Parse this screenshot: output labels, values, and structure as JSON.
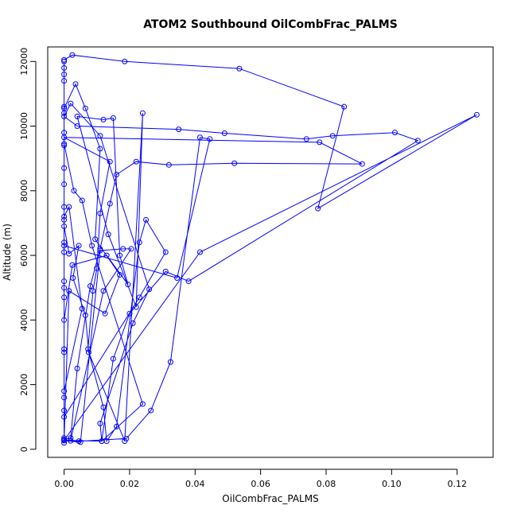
{
  "chart_data": {
    "type": "scatter",
    "title": "ATOM2 Southbound OilCombFrac_PALMS",
    "xlabel": "OilCombFrac_PALMS",
    "ylabel": "Altitude (m)",
    "xlim": [
      -0.005,
      0.131
    ],
    "ylim": [
      -250,
      12450
    ],
    "xticks": [
      0.0,
      0.02,
      0.04,
      0.06,
      0.08,
      0.1,
      0.12
    ],
    "xtick_labels": [
      "0.00",
      "0.02",
      "0.04",
      "0.06",
      "0.08",
      "0.10",
      "0.12"
    ],
    "yticks": [
      0,
      2000,
      4000,
      6000,
      8000,
      10000,
      12000
    ],
    "ytick_labels": [
      "0",
      "2000",
      "4000",
      "6000",
      "8000",
      "10000",
      "12000"
    ],
    "grid": false,
    "legend": "none",
    "series_color": "#0000ff",
    "marker": "open-circle",
    "connected": true,
    "series": [
      {
        "points": [
          [
            0.0,
            200
          ],
          [
            0.0,
            350
          ],
          [
            0.0,
            1200
          ],
          [
            0.0,
            3000
          ],
          [
            0.0,
            5000
          ],
          [
            0.0,
            6400
          ],
          [
            0.0,
            7100
          ],
          [
            0.0,
            8200
          ],
          [
            0.0,
            9400
          ],
          [
            0.0,
            10400
          ],
          [
            0.0,
            11600
          ],
          [
            0.0,
            12000
          ],
          [
            0.0,
            11800
          ],
          [
            0.0,
            11400
          ],
          [
            0.0,
            10600
          ],
          [
            0.0,
            9800
          ],
          [
            0.0,
            8700
          ],
          [
            0.0,
            7500
          ],
          [
            0.0,
            6100
          ],
          [
            0.0,
            4700
          ],
          [
            0.0,
            3100
          ],
          [
            0.0,
            1600
          ],
          [
            0.0,
            300
          ],
          [
            0.002,
            350
          ],
          [
            0.004,
            2500
          ],
          [
            0.008,
            5050
          ],
          [
            0.011,
            6200
          ],
          [
            0.014,
            7600
          ],
          [
            0.016,
            8500
          ],
          [
            0.022,
            8900
          ],
          [
            0.032,
            8800
          ],
          [
            0.052,
            8850
          ],
          [
            0.091,
            8830
          ],
          [
            0.078,
            9500
          ],
          [
            0.0,
            9650
          ],
          [
            0.014,
            8900
          ],
          [
            0.011,
            7300
          ],
          [
            0.01,
            5600
          ],
          [
            0.0088,
            4900
          ],
          [
            0.0073,
            3100
          ],
          [
            0.012,
            1300
          ],
          [
            0.013,
            250
          ],
          [
            0.016,
            700
          ],
          [
            0.023,
            6400
          ],
          [
            0.025,
            7100
          ],
          [
            0.031,
            6100
          ],
          [
            0.023,
            4700
          ],
          [
            0.0,
            1000
          ],
          [
            0.0,
            280
          ],
          [
            0.0115,
            250
          ],
          [
            0.015,
            2800
          ],
          [
            0.02,
            4200
          ],
          [
            0.031,
            5500
          ],
          [
            0.038,
            5200
          ],
          [
            0.108,
            9550
          ],
          [
            0.101,
            9800
          ],
          [
            0.082,
            9700
          ],
          [
            0.074,
            9600
          ],
          [
            0.049,
            9780
          ],
          [
            0.035,
            9900
          ],
          [
            0.004,
            10000
          ],
          [
            0.0,
            10300
          ],
          [
            0.002,
            10700
          ],
          [
            0.011,
            9700
          ],
          [
            0.026,
            4950
          ],
          [
            0.021,
            3900
          ],
          [
            0.011,
            800
          ],
          [
            0.0115,
            250
          ],
          [
            0.024,
            1400
          ],
          [
            0.0085,
            6300
          ],
          [
            0.0055,
            7700
          ],
          [
            0.003,
            8000
          ],
          [
            0.0,
            9450
          ],
          [
            0.0,
            10550
          ],
          [
            0.0035,
            11300
          ],
          [
            0.0065,
            10550
          ],
          [
            0.011,
            9300
          ],
          [
            0.0095,
            6500
          ],
          [
            0.017,
            5400
          ],
          [
            0.0125,
            4200
          ],
          [
            0.0015,
            4900
          ],
          [
            0.0,
            270
          ],
          [
            0.005,
            220
          ],
          [
            0.011,
            6150
          ],
          [
            0.018,
            6200
          ],
          [
            0.0205,
            6200
          ],
          [
            0.012,
            4900
          ],
          [
            0.002,
            260
          ],
          [
            0.0045,
            250
          ],
          [
            0.019,
            330
          ],
          [
            0.0265,
            1200
          ],
          [
            0.0325,
            2700
          ],
          [
            0.0415,
            9650
          ],
          [
            0.0445,
            9600
          ],
          [
            0.0345,
            5300
          ],
          [
            0.0,
            6300
          ],
          [
            0.0,
            5200
          ],
          [
            0.0,
            4000
          ],
          [
            0.0025,
            5700
          ],
          [
            0.013,
            6000
          ],
          [
            0.0195,
            5100
          ],
          [
            0.017,
            6000
          ],
          [
            0.015,
            10250
          ],
          [
            0.012,
            10200
          ],
          [
            0.004,
            10300
          ],
          [
            0.0135,
            6650
          ],
          [
            0.022,
            4400
          ],
          [
            0.024,
            10400
          ],
          [
            0.0185,
            250
          ],
          [
            0.0075,
            3000
          ],
          [
            0.0065,
            4150
          ],
          [
            0.0027,
            5300
          ],
          [
            0.0045,
            6300
          ],
          [
            0.0015,
            6050
          ],
          [
            0.0,
            6900
          ],
          [
            0.0,
            7200
          ],
          [
            0.0015,
            7500
          ],
          [
            0.0055,
            4350
          ],
          [
            0.0,
            1800
          ],
          [
            0.0,
            280
          ],
          [
            0.0415,
            6100
          ],
          [
            0.126,
            10350
          ],
          [
            0.0775,
            7450
          ],
          [
            0.0855,
            10600
          ],
          [
            0.0535,
            11780
          ],
          [
            0.0185,
            12000
          ],
          [
            0.0025,
            12200
          ],
          [
            0.0,
            12050
          ]
        ]
      }
    ]
  }
}
